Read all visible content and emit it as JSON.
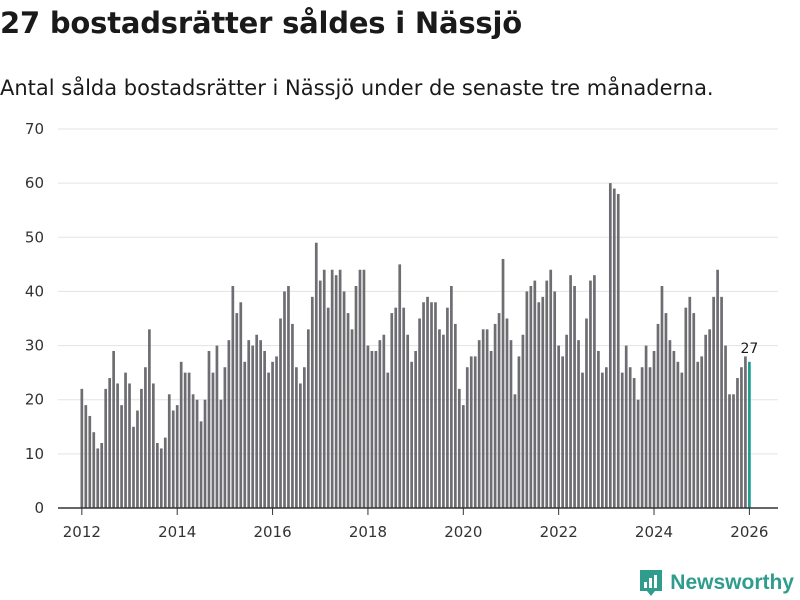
{
  "header": {
    "title": "27 bostadsrätter såldes i Nässjö",
    "subtitle": "Antal sålda bostadsrätter i Nässjö under de senaste tre månaderna."
  },
  "brand": {
    "name": "Newsworthy",
    "icon": "newsworthy-logo-icon"
  },
  "colors": {
    "bar": "#6e6d72",
    "highlight": "#1a9c8f",
    "grid": "#e3e3e3",
    "axis": "#333333",
    "brand": "#2f9c8d"
  },
  "chart_data": {
    "type": "bar",
    "title": "27 bostadsrätter såldes i Nässjö",
    "subtitle": "Antal sålda bostadsrätter i Nässjö under de senaste tre månaderna.",
    "xlabel": "",
    "ylabel": "",
    "ylim": [
      0,
      70
    ],
    "yticks": [
      0,
      10,
      20,
      30,
      40,
      50,
      60,
      70
    ],
    "xlim": [
      2011.5,
      2026.6
    ],
    "xticks": [
      2012,
      2014,
      2016,
      2018,
      2020,
      2022,
      2024,
      2026
    ],
    "grid": true,
    "start": {
      "year": 2012,
      "month": 1
    },
    "highlight_last": true,
    "last_value_label": "27",
    "values": [
      22,
      19,
      17,
      14,
      11,
      12,
      22,
      24,
      29,
      23,
      19,
      25,
      23,
      15,
      18,
      22,
      26,
      33,
      23,
      12,
      11,
      13,
      21,
      18,
      19,
      27,
      25,
      25,
      21,
      20,
      16,
      20,
      29,
      25,
      30,
      20,
      26,
      31,
      41,
      36,
      38,
      27,
      31,
      30,
      32,
      31,
      29,
      25,
      27,
      28,
      35,
      40,
      41,
      34,
      26,
      23,
      26,
      33,
      39,
      49,
      42,
      44,
      37,
      44,
      43,
      44,
      40,
      36,
      33,
      41,
      44,
      44,
      30,
      29,
      29,
      31,
      32,
      25,
      36,
      37,
      45,
      37,
      32,
      27,
      29,
      35,
      38,
      39,
      38,
      38,
      33,
      32,
      37,
      41,
      34,
      22,
      19,
      26,
      28,
      28,
      31,
      33,
      33,
      29,
      34,
      36,
      46,
      35,
      31,
      21,
      28,
      32,
      40,
      41,
      42,
      38,
      39,
      42,
      44,
      40,
      30,
      28,
      32,
      43,
      41,
      31,
      25,
      35,
      42,
      43,
      29,
      25,
      26,
      60,
      59,
      58,
      25,
      30,
      26,
      24,
      20,
      26,
      30,
      26,
      29,
      34,
      41,
      36,
      31,
      29,
      27,
      25,
      37,
      39,
      36,
      27,
      28,
      32,
      33,
      39,
      44,
      39,
      30,
      21,
      21,
      24,
      26,
      28,
      27
    ]
  }
}
